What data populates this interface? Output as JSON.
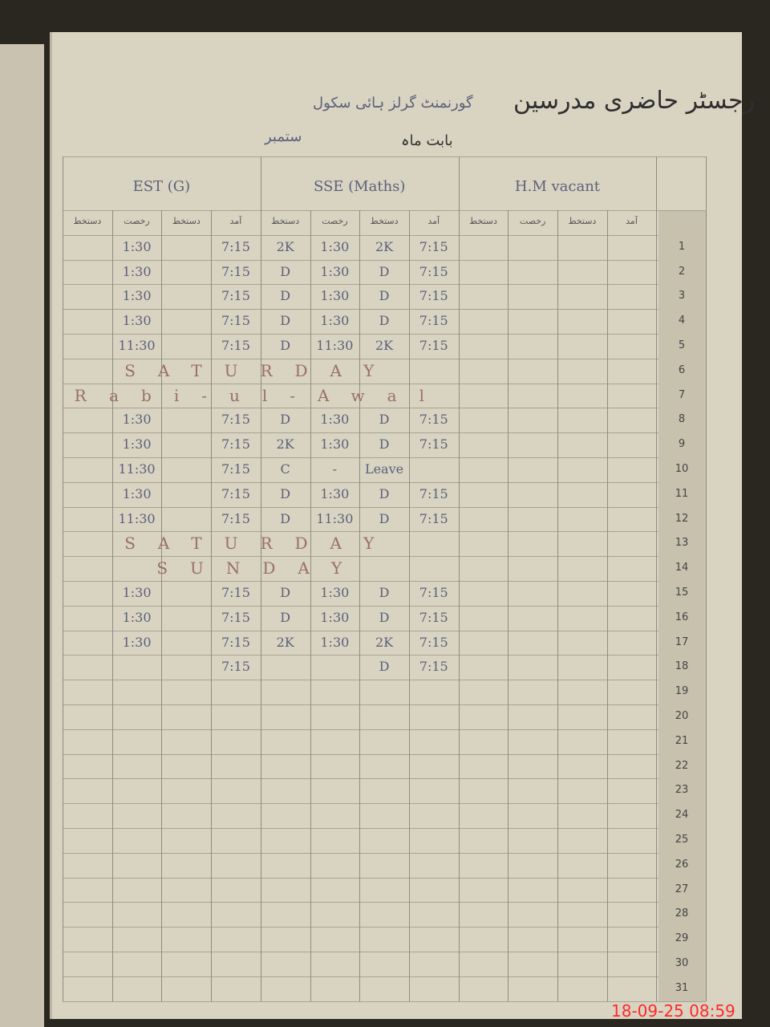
{
  "header": {
    "title": "رجسٹر حاضری مدرسین",
    "school": "گورنمنٹ گرلز ہائی سکول",
    "month_label": "بابت ماہ",
    "month": "ستمبر"
  },
  "columns": [
    "دستخط",
    "رخصت",
    "دستخط",
    "آمد"
  ],
  "teachers": [
    "EST (G)",
    "SSE (Maths)",
    "H.M vacant"
  ],
  "rows": [
    {
      "number": 1,
      "cells": [
        null,
        "1:30",
        null,
        "7:15",
        "2K",
        "1:30",
        "2K",
        "7:15"
      ]
    },
    {
      "number": 2,
      "cells": [
        null,
        "1:30",
        null,
        "7:15",
        "D",
        "1:30",
        "D",
        "7:15"
      ]
    },
    {
      "number": 3,
      "cells": [
        null,
        "1:30",
        null,
        "7:15",
        "D",
        "1:30",
        "D",
        "7:15"
      ]
    },
    {
      "number": 4,
      "cells": [
        null,
        "1:30",
        null,
        "7:15",
        "D",
        "1:30",
        "D",
        "7:15"
      ]
    },
    {
      "number": 5,
      "cells": [
        null,
        "11:30",
        null,
        "7:15",
        "D",
        "11:30",
        "2K",
        "7:15"
      ]
    },
    {
      "number": 6,
      "note": "SATURDAY"
    },
    {
      "number": 7,
      "note": "Rabi-ul-Awal"
    },
    {
      "number": 8,
      "cells": [
        null,
        "1:30",
        null,
        "7:15",
        "D",
        "1:30",
        "D",
        "7:15"
      ]
    },
    {
      "number": 9,
      "cells": [
        null,
        "1:30",
        null,
        "7:15",
        "2K",
        "1:30",
        "D",
        "7:15"
      ]
    },
    {
      "number": 10,
      "cells": [
        null,
        "11:30",
        null,
        "7:15",
        "C",
        "-",
        "Leave",
        null
      ]
    },
    {
      "number": 11,
      "cells": [
        null,
        "1:30",
        null,
        "7:15",
        "D",
        "1:30",
        "D",
        "7:15"
      ]
    },
    {
      "number": 12,
      "cells": [
        null,
        "11:30",
        null,
        "7:15",
        "D",
        "11:30",
        "D",
        "7:15"
      ]
    },
    {
      "number": 13,
      "note": "SATURDAY"
    },
    {
      "number": 14,
      "note": "SUNDAY"
    },
    {
      "number": 15,
      "cells": [
        null,
        "1:30",
        null,
        "7:15",
        "D",
        "1:30",
        "D",
        "7:15"
      ]
    },
    {
      "number": 16,
      "cells": [
        null,
        "1:30",
        null,
        "7:15",
        "D",
        "1:30",
        "D",
        "7:15"
      ]
    },
    {
      "number": 17,
      "cells": [
        null,
        "1:30",
        null,
        "7:15",
        "2K",
        "1:30",
        "2K",
        "7:15"
      ]
    },
    {
      "number": 18,
      "cells": [
        null,
        null,
        null,
        "7:15",
        null,
        null,
        "D",
        "7:15"
      ]
    },
    {
      "number": 19
    },
    {
      "number": 20
    },
    {
      "number": 21
    },
    {
      "number": 22
    },
    {
      "number": 23
    },
    {
      "number": 24
    },
    {
      "number": 25
    },
    {
      "number": 26
    },
    {
      "number": 27
    },
    {
      "number": 28
    },
    {
      "number": 29
    },
    {
      "number": 30
    },
    {
      "number": 31
    }
  ],
  "timestamp": "18-09-25 08:59"
}
